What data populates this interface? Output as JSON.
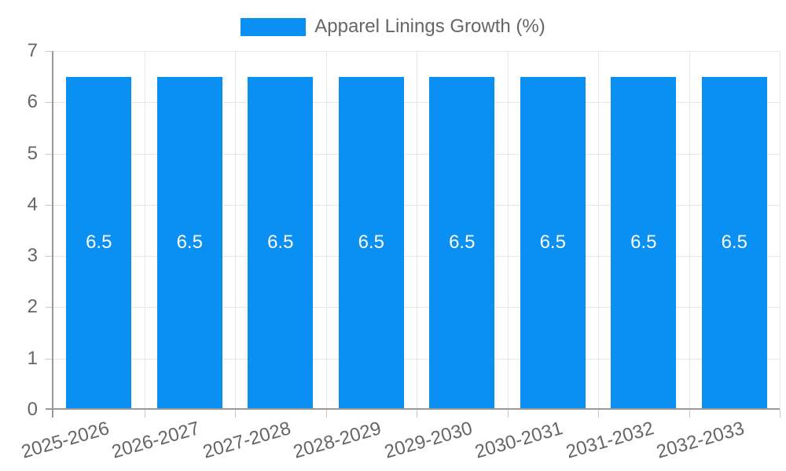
{
  "chart_data": {
    "type": "bar",
    "title": "Apparel Linings Growth (%)",
    "categories": [
      "2025-2026",
      "2026-2027",
      "2027-2028",
      "2028-2029",
      "2029-2030",
      "2030-2031",
      "2031-2032",
      "2032-2033"
    ],
    "values": [
      6.5,
      6.5,
      6.5,
      6.5,
      6.5,
      6.5,
      6.5,
      6.5
    ],
    "xlabel": "",
    "ylabel": "",
    "ylim": [
      0,
      7
    ],
    "yticks": [
      0,
      1,
      2,
      3,
      4,
      5,
      6,
      7
    ],
    "grid": true,
    "legend": {
      "position": "top",
      "label": "Apparel Linings Growth (%)"
    },
    "colors": {
      "bar": "#0a8ff2",
      "value_label": "#ffffff",
      "grid_line": "#e6e6e6",
      "tick_mark": "#c8c8c8",
      "axis_line": "#999999",
      "tick_label": "#666666",
      "legend_text": "#666666",
      "background": "#ffffff"
    }
  }
}
